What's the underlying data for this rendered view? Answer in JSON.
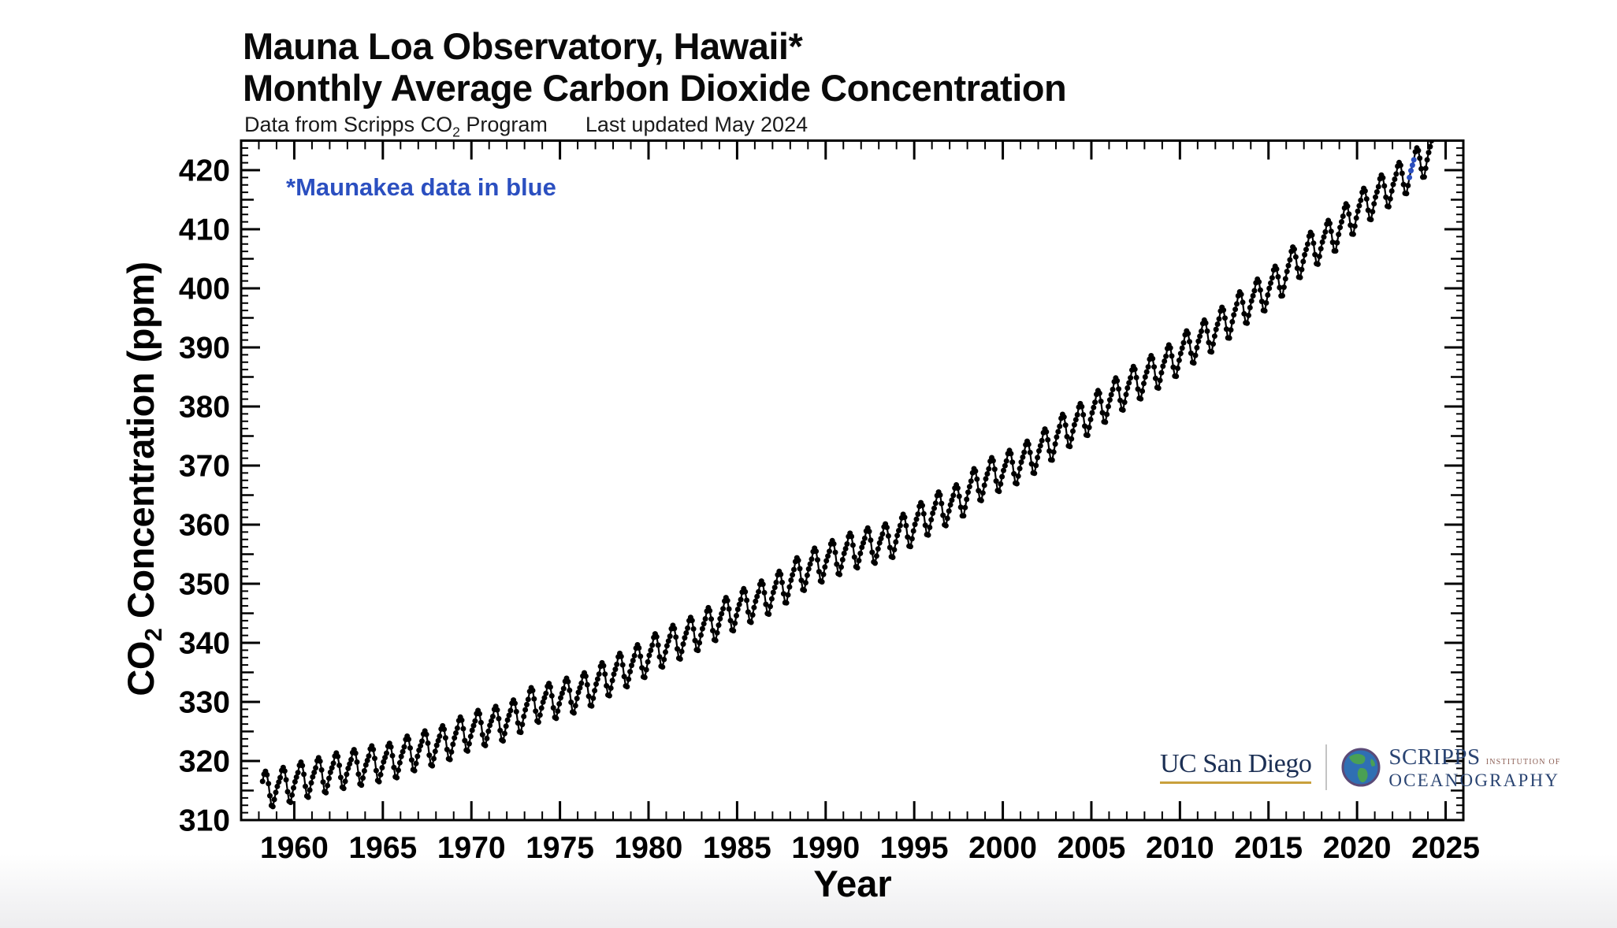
{
  "header": {
    "title_line1": "Mauna Loa Observatory, Hawaii*",
    "title_line2": "Monthly Average Carbon Dioxide Concentration",
    "caption": {
      "pre": "Data from Scripps CO",
      "sub": "2",
      "post": " Program",
      "updated": "Last updated May 2024"
    }
  },
  "annotation": {
    "text": "*Maunakea data in blue"
  },
  "axis_titles": {
    "x": "Year",
    "y": {
      "pre": "CO",
      "sub": "2",
      "post": " Concentration (ppm)"
    }
  },
  "logos": {
    "ucsd": "UC San Diego",
    "scripps_name": "SCRIPPS",
    "scripps_inst": "INSTITUTION OF",
    "scripps_ocean": "OCEANOGRAPHY"
  },
  "colors": {
    "data_black": "#000000",
    "maunakea_blue": "#2b4fc0",
    "frame_black": "#000000",
    "logo_navy": "#2a4472",
    "ucsd_gold": "#c9a03c"
  },
  "chart_data": {
    "type": "scatter",
    "title": "Mauna Loa Observatory, Hawaii — Monthly Average Carbon Dioxide Concentration",
    "xlabel": "Year",
    "ylabel": "CO2 Concentration (ppm)",
    "xlim": [
      1957,
      2026
    ],
    "ylim": [
      310,
      425
    ],
    "grid": false,
    "legend_position": "none",
    "x_tick_labels": [
      "1960",
      "1965",
      "1970",
      "1975",
      "1980",
      "1985",
      "1990",
      "1995",
      "2000",
      "2005",
      "2010",
      "2015",
      "2020",
      "2025"
    ],
    "x_major_step": 5,
    "x_minor_step": 1,
    "y_tick_labels": [
      "310",
      "320",
      "330",
      "340",
      "350",
      "360",
      "370",
      "380",
      "390",
      "400",
      "410",
      "420"
    ],
    "y_major_step": 10,
    "y_medium_step": 5,
    "y_minor_step": 1.25,
    "series_range": {
      "start_year": 1958,
      "start_month": 3,
      "end_year": 2024,
      "end_month": 5
    },
    "annual_means": {
      "start_year": 1958,
      "values": [
        315.34,
        315.98,
        316.91,
        317.64,
        318.45,
        318.99,
        319.62,
        320.04,
        321.37,
        322.18,
        323.05,
        324.62,
        325.68,
        326.32,
        327.46,
        329.68,
        330.19,
        331.12,
        332.03,
        333.84,
        335.41,
        336.84,
        338.76,
        340.12,
        341.48,
        343.15,
        344.87,
        346.35,
        347.61,
        349.31,
        351.69,
        353.2,
        354.45,
        355.7,
        356.54,
        357.21,
        358.96,
        360.97,
        362.74,
        363.88,
        366.84,
        368.54,
        369.71,
        371.32,
        373.45,
        375.98,
        377.7,
        379.98,
        382.09,
        384.02,
        385.83,
        387.64,
        390.1,
        391.85,
        394.06,
        396.74,
        398.81,
        401.01,
        404.41,
        406.76,
        408.72,
        411.66,
        414.24,
        416.45,
        418.56,
        421.08,
        424.61
      ]
    },
    "seasonal_cycle_ppm": [
      0.0,
      0.7,
      1.4,
      2.55,
      3.0,
      2.35,
      0.8,
      -1.3,
      -3.0,
      -3.25,
      -2.1,
      -0.95
    ],
    "maunakea_blue_months": [
      "2022-12",
      "2023-01",
      "2023-02",
      "2023-03"
    ]
  }
}
